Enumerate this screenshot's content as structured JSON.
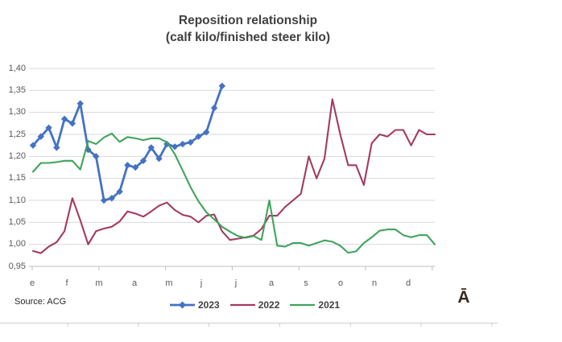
{
  "title": {
    "line1": "Reposition relationship",
    "line2": "(calf kilo/finished steer kilo)"
  },
  "source": "Source: ACG",
  "watermark": "Ā",
  "chart_data": {
    "type": "line",
    "title": "Reposition relationship (calf kilo/finished steer kilo)",
    "xlabel": "",
    "ylabel": "",
    "ylim": [
      0.95,
      1.4
    ],
    "y_step": 0.05,
    "grid": true,
    "legend_position": "bottom",
    "decimal_separator": ",",
    "y_tick_labels": [
      "1,40",
      "1,35",
      "1,30",
      "1,25",
      "1,20",
      "1,15",
      "1,10",
      "1,05",
      "1,00",
      "0,95"
    ],
    "month_labels": [
      "e",
      "f",
      "m",
      "a",
      "m",
      "j",
      "j",
      "a",
      "s",
      "o",
      "n",
      "d"
    ],
    "n_points": 52,
    "x_unit": "week of year",
    "series": [
      {
        "name": "2023",
        "color": "#4472C4",
        "marker": "diamond",
        "values": [
          1.225,
          1.245,
          1.265,
          1.22,
          1.285,
          1.275,
          1.32,
          1.215,
          1.2,
          1.1,
          1.105,
          1.12,
          1.18,
          1.175,
          1.19,
          1.22,
          1.195,
          1.228,
          1.222,
          1.228,
          1.232,
          1.245,
          1.255,
          1.31,
          1.36
        ]
      },
      {
        "name": "2022",
        "color": "#A23B63",
        "marker": "none",
        "values": [
          0.985,
          0.98,
          0.995,
          1.005,
          1.03,
          1.105,
          1.055,
          1.0,
          1.03,
          1.036,
          1.04,
          1.052,
          1.075,
          1.07,
          1.063,
          1.075,
          1.088,
          1.095,
          1.078,
          1.067,
          1.063,
          1.05,
          1.065,
          1.068,
          1.03,
          1.01,
          1.013,
          1.016,
          1.02,
          1.035,
          1.065,
          1.065,
          1.085,
          1.1,
          1.115,
          1.2,
          1.15,
          1.195,
          1.33,
          1.25,
          1.18,
          1.18,
          1.135,
          1.23,
          1.25,
          1.245,
          1.26,
          1.26,
          1.225,
          1.26,
          1.25,
          1.25
        ]
      },
      {
        "name": "2021",
        "color": "#3FA45B",
        "marker": "none",
        "values": [
          1.165,
          1.185,
          1.185,
          1.187,
          1.19,
          1.19,
          1.17,
          1.235,
          1.228,
          1.243,
          1.252,
          1.233,
          1.244,
          1.241,
          1.237,
          1.241,
          1.241,
          1.232,
          1.205,
          1.168,
          1.13,
          1.098,
          1.073,
          1.057,
          1.04,
          1.029,
          1.019,
          1.015,
          1.019,
          1.01,
          1.1,
          0.997,
          0.995,
          1.003,
          1.003,
          0.997,
          1.003,
          1.009,
          1.006,
          0.997,
          0.981,
          0.984,
          1.003,
          1.016,
          1.031,
          1.034,
          1.034,
          1.021,
          1.016,
          1.021,
          1.021,
          1.0
        ]
      }
    ]
  }
}
